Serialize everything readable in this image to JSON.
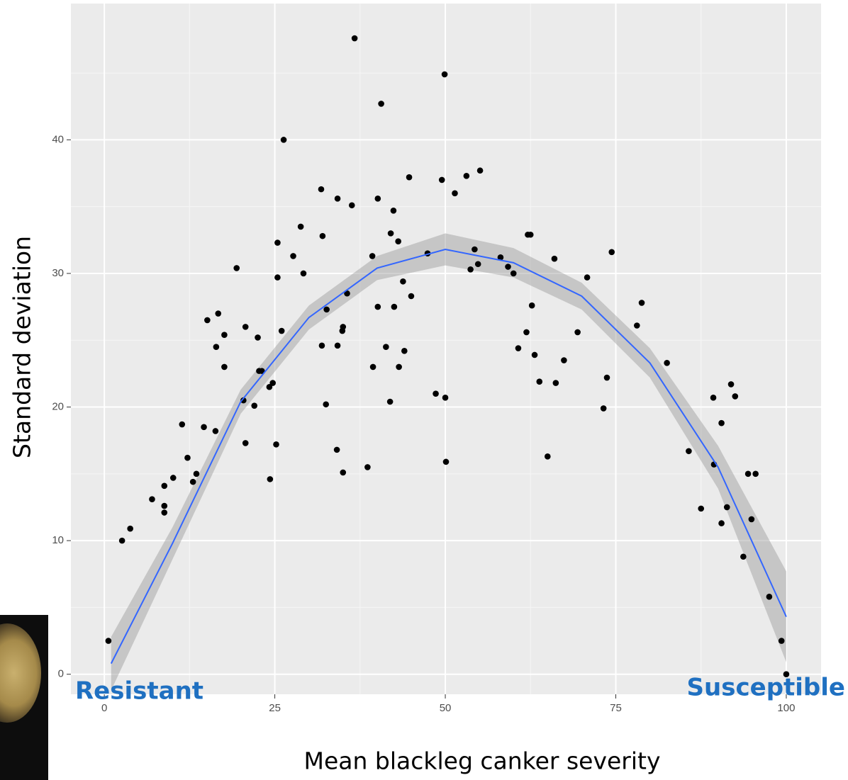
{
  "chart_data": {
    "type": "scatter",
    "x_label": "Mean blackleg canker severity",
    "y_label": "Standard deviation",
    "annotations": [
      "Resistant",
      "Susceptible"
    ],
    "xlim": [
      -4.9,
      105.1
    ],
    "ylim": [
      -1.5,
      50.2
    ],
    "xticks": [
      0,
      25,
      50,
      75,
      100
    ],
    "yticks": [
      0,
      10,
      20,
      30,
      40
    ],
    "grid": true,
    "point_color": "#000000",
    "x": [
      0.6,
      2.6,
      3.8,
      7.0,
      8.8,
      8.8,
      8.8,
      10.1,
      11.4,
      12.2,
      13.0,
      13.5,
      14.6,
      15.1,
      16.3,
      16.4,
      16.7,
      17.6,
      17.6,
      19.4,
      20.4,
      20.7,
      20.7,
      22.0,
      22.5,
      22.7,
      23.1,
      24.2,
      24.7,
      24.3,
      25.2,
      25.4,
      25.4,
      26.0,
      26.3,
      27.7,
      28.8,
      29.2,
      31.8,
      31.9,
      32.0,
      32.5,
      32.6,
      34.1,
      34.2,
      34.2,
      34.9,
      35.0,
      35.0,
      35.6,
      36.3,
      36.7,
      38.6,
      39.3,
      39.4,
      40.1,
      40.1,
      40.6,
      41.3,
      41.9,
      42.0,
      42.4,
      42.5,
      43.1,
      43.2,
      43.8,
      44.0,
      44.7,
      45.0,
      47.4,
      48.6,
      49.5,
      49.9,
      50.0,
      50.1,
      51.4,
      53.1,
      53.7,
      54.3,
      54.8,
      55.1,
      58.1,
      59.2,
      60.0,
      60.7,
      61.9,
      62.1,
      62.5,
      62.7,
      63.1,
      63.8,
      65.0,
      66.0,
      66.2,
      67.4,
      69.4,
      70.8,
      73.2,
      73.7,
      74.4,
      78.1,
      78.8,
      82.5,
      85.7,
      87.5,
      89.3,
      89.4,
      90.5,
      90.5,
      91.3,
      91.9,
      92.5,
      93.7,
      94.4,
      94.9,
      95.5,
      97.5,
      99.3,
      100
    ],
    "y": [
      2.5,
      10.0,
      10.9,
      13.1,
      14.1,
      12.6,
      12.1,
      14.7,
      18.7,
      16.2,
      14.4,
      15.0,
      18.5,
      26.5,
      18.2,
      24.5,
      27.0,
      25.4,
      23.0,
      30.4,
      20.5,
      26.0,
      17.3,
      20.1,
      25.2,
      22.7,
      22.7,
      21.5,
      21.8,
      14.6,
      17.2,
      32.3,
      29.7,
      25.7,
      40.0,
      31.3,
      33.5,
      30.0,
      36.3,
      24.6,
      32.8,
      20.2,
      27.3,
      16.8,
      35.6,
      24.6,
      25.7,
      26.0,
      15.1,
      28.5,
      35.1,
      47.6,
      15.5,
      31.3,
      23.0,
      35.6,
      27.5,
      42.7,
      24.5,
      20.4,
      33.0,
      34.7,
      27.5,
      32.4,
      23.0,
      29.4,
      24.2,
      37.2,
      28.3,
      31.5,
      21.0,
      37.0,
      44.9,
      20.7,
      15.9,
      36.0,
      37.3,
      30.3,
      31.8,
      30.7,
      37.7,
      31.2,
      30.5,
      30.0,
      24.4,
      25.6,
      32.9,
      32.9,
      27.6,
      23.9,
      21.9,
      16.3,
      31.1,
      21.8,
      23.5,
      25.6,
      29.7,
      19.9,
      22.2,
      31.6,
      26.1,
      27.8,
      23.3,
      16.7,
      12.4,
      20.7,
      15.7,
      18.8,
      11.3,
      12.5,
      21.7,
      20.8,
      8.8,
      15.0,
      11.6,
      15.0,
      5.8,
      2.5,
      0
    ],
    "fit": {
      "color": "#3366ff",
      "band_color": "#999999",
      "x": [
        1,
        10,
        20,
        30,
        40,
        50,
        60,
        70,
        80,
        90,
        100
      ],
      "y": [
        0.8,
        9.8,
        20.4,
        26.7,
        30.4,
        31.8,
        30.8,
        28.3,
        23.3,
        15.5,
        4.3
      ],
      "lower": [
        -1.2,
        8.6,
        19.5,
        25.8,
        29.5,
        30.6,
        29.7,
        27.3,
        22.2,
        13.9,
        0.9
      ],
      "upper": [
        2.8,
        11.0,
        21.3,
        27.6,
        31.3,
        33.0,
        31.9,
        29.3,
        24.4,
        17.1,
        7.7
      ]
    }
  }
}
